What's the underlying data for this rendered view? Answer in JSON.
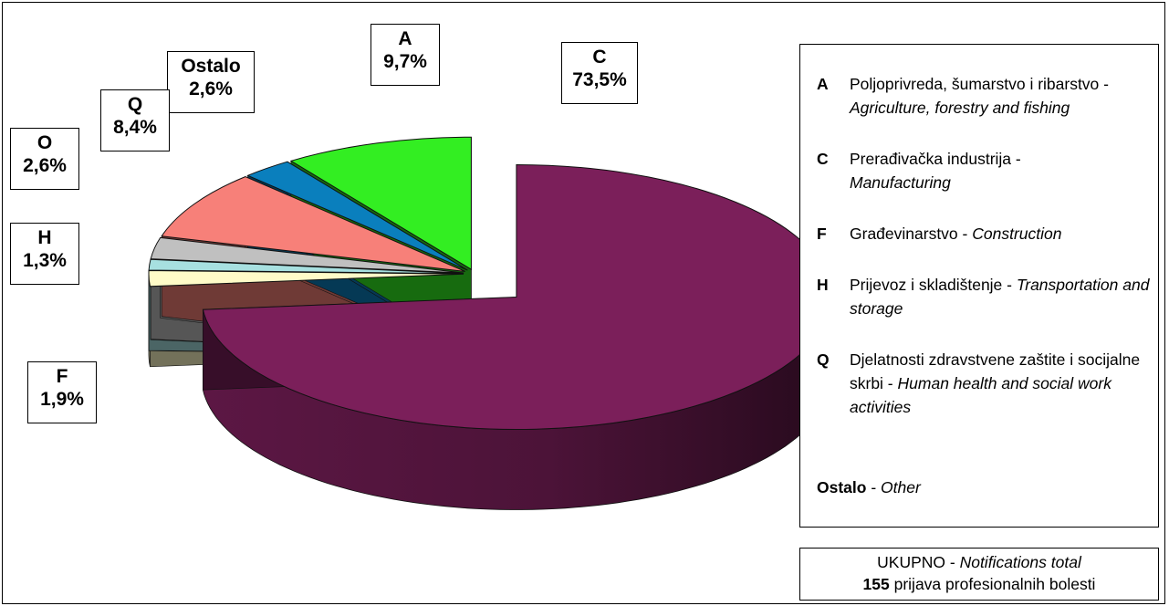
{
  "chart_data": {
    "type": "pie",
    "title": "",
    "slices": [
      {
        "code": "C",
        "value": 73.5,
        "label": "73,5%",
        "color": "#7b1f5a"
      },
      {
        "code": "F",
        "value": 1.9,
        "label": "1,9%",
        "color": "#fffbc8"
      },
      {
        "code": "H",
        "value": 1.3,
        "label": "1,3%",
        "color": "#a7e0e0"
      },
      {
        "code": "O",
        "value": 2.6,
        "label": "2,6%",
        "color": "#c0c0c0"
      },
      {
        "code": "Q",
        "value": 8.4,
        "label": "8,4%",
        "color": "#f78079"
      },
      {
        "code": "Ostalo",
        "value": 2.6,
        "label": "2,6%",
        "color": "#0a7fbd"
      },
      {
        "code": "A",
        "value": 9.7,
        "label": "9,7%",
        "color": "#33ee22"
      }
    ]
  },
  "legend": {
    "items": [
      {
        "code": "A",
        "hr": "Poljoprivreda, šumarstvo i ribarstvo -",
        "en": "Agriculture, forestry and fishing"
      },
      {
        "code": "C",
        "hr": "Prerađivačka industrija -",
        "en": "Manufacturing"
      },
      {
        "code": "F",
        "hr": "Građevinarstvo -",
        "en": "Construction"
      },
      {
        "code": "H",
        "hr": "Prijevoz i skladištenje -",
        "en": "Transportation and storage"
      },
      {
        "code": "Q",
        "hr": "Djelatnosti zdravstvene zaštite i socijalne skrbi -",
        "en": "Human health and social work activities"
      }
    ],
    "other_code": "Ostalo",
    "other_sep": " - ",
    "other_en": "Other"
  },
  "total": {
    "line1_hr": "UKUPNO - ",
    "line1_en": "Notifications total",
    "count": "155",
    "line2_rest": " prijava profesionalnih bolesti"
  }
}
